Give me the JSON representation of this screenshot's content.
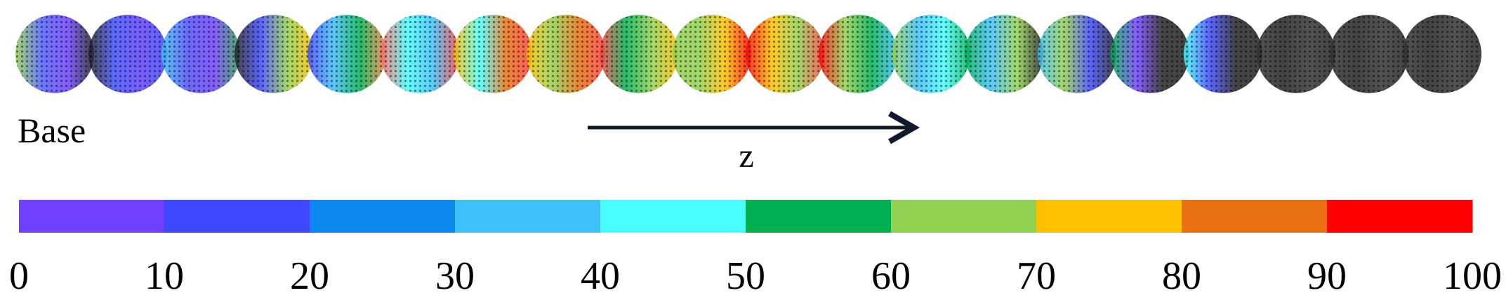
{
  "label": "Base",
  "axis_label": "z",
  "colorbar": {
    "colors": [
      "#7040ff",
      "#3f48ff",
      "#0a88f0",
      "#3ec0f8",
      "#48fdfd",
      "#00b050",
      "#92d050",
      "#ffc000",
      "#e87010",
      "#ff0000"
    ],
    "ticks": [
      0,
      10,
      20,
      30,
      40,
      50,
      60,
      70,
      80,
      90,
      100
    ]
  }
}
